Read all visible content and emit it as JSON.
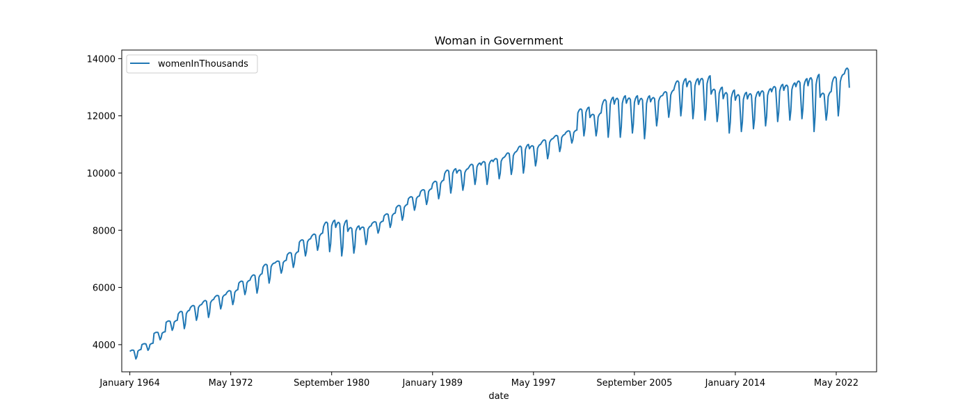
{
  "chart_data": {
    "type": "line",
    "title": "Woman in Government",
    "xlabel": "date",
    "ylabel": "",
    "ylim": [
      3050,
      14300
    ],
    "xlim": [
      "1963-05",
      "2025-09"
    ],
    "x_ticks": [
      "January 1964",
      "May 1972",
      "September 1980",
      "January 1989",
      "May 1997",
      "September 2005",
      "January 2014",
      "May 2022"
    ],
    "x_tick_dates": [
      "1964-01",
      "1972-05",
      "1980-09",
      "1989-01",
      "1997-05",
      "2005-09",
      "2014-01",
      "2022-05"
    ],
    "y_ticks": [
      4000,
      6000,
      8000,
      10000,
      12000,
      14000
    ],
    "grid": false,
    "legend": {
      "position": "top-left"
    },
    "series": [
      {
        "name": "womenInThousands",
        "color": "#1f77b4",
        "frequency": "monthly",
        "start": "1964-01",
        "end": "2023-06",
        "annual_peak": [
          [
            "1964",
            3830
          ],
          [
            "1965",
            4050
          ],
          [
            "1966",
            4450
          ],
          [
            "1967",
            4850
          ],
          [
            "1968",
            5200
          ],
          [
            "1969",
            5400
          ],
          [
            "1970",
            5580
          ],
          [
            "1971",
            5750
          ],
          [
            "1972",
            5920
          ],
          [
            "1973",
            6250
          ],
          [
            "1974",
            6480
          ],
          [
            "1975",
            6850
          ],
          [
            "1976",
            6950
          ],
          [
            "1977",
            7250
          ],
          [
            "1978",
            7700
          ],
          [
            "1979",
            7900
          ],
          [
            "1980",
            8350
          ],
          [
            "1981",
            8350
          ],
          [
            "1982",
            8150
          ],
          [
            "1983",
            8150
          ],
          [
            "1984",
            8320
          ],
          [
            "1985",
            8600
          ],
          [
            "1986",
            8900
          ],
          [
            "1987",
            9200
          ],
          [
            "1988",
            9450
          ],
          [
            "1989",
            9750
          ],
          [
            "1990",
            10150
          ],
          [
            "1991",
            10150
          ],
          [
            "1992",
            10350
          ],
          [
            "1993",
            10450
          ],
          [
            "1994",
            10550
          ],
          [
            "1995",
            10750
          ],
          [
            "1996",
            11000
          ],
          [
            "1997",
            11000
          ],
          [
            "1998",
            11200
          ],
          [
            "1999",
            11350
          ],
          [
            "2000",
            11500
          ],
          [
            "2001",
            12300
          ],
          [
            "2002",
            12100
          ],
          [
            "2003",
            12650
          ],
          [
            "2004",
            12700
          ],
          [
            "2005",
            12700
          ],
          [
            "2006",
            12700
          ],
          [
            "2007",
            12700
          ],
          [
            "2008",
            12900
          ],
          [
            "2009",
            13300
          ],
          [
            "2010",
            13300
          ],
          [
            "2011",
            13400
          ],
          [
            "2012",
            13000
          ],
          [
            "2013",
            12900
          ],
          [
            "2014",
            12820
          ],
          [
            "2015",
            12850
          ],
          [
            "2016",
            12950
          ],
          [
            "2017",
            13100
          ],
          [
            "2018",
            13150
          ],
          [
            "2019",
            13300
          ],
          [
            "2020",
            13450
          ],
          [
            "2021",
            12850
          ],
          [
            "2022",
            13450
          ],
          [
            "2023",
            13750
          ]
        ],
        "annual_summer_low": [
          [
            "1964",
            3500
          ],
          [
            "1965",
            3800
          ],
          [
            "1966",
            4170
          ],
          [
            "1967",
            4500
          ],
          [
            "1968",
            4560
          ],
          [
            "1969",
            4850
          ],
          [
            "1970",
            4950
          ],
          [
            "1971",
            5250
          ],
          [
            "1972",
            5400
          ],
          [
            "1973",
            5750
          ],
          [
            "1974",
            5800
          ],
          [
            "1975",
            6150
          ],
          [
            "1976",
            6500
          ],
          [
            "1977",
            6700
          ],
          [
            "1978",
            7100
          ],
          [
            "1979",
            7300
          ],
          [
            "1980",
            7250
          ],
          [
            "1981",
            7100
          ],
          [
            "1982",
            7200
          ],
          [
            "1983",
            7500
          ],
          [
            "1984",
            7900
          ],
          [
            "1985",
            8100
          ],
          [
            "1986",
            8350
          ],
          [
            "1987",
            8700
          ],
          [
            "1988",
            8900
          ],
          [
            "1989",
            9100
          ],
          [
            "1990",
            9300
          ],
          [
            "1991",
            9400
          ],
          [
            "1992",
            9600
          ],
          [
            "1993",
            9600
          ],
          [
            "1994",
            9800
          ],
          [
            "1995",
            9950
          ],
          [
            "1996",
            10000
          ],
          [
            "1997",
            10250
          ],
          [
            "1998",
            10500
          ],
          [
            "1999",
            10750
          ],
          [
            "2000",
            11050
          ],
          [
            "2001",
            11300
          ],
          [
            "2002",
            11300
          ],
          [
            "2003",
            11250
          ],
          [
            "2004",
            11250
          ],
          [
            "2005",
            11400
          ],
          [
            "2006",
            11200
          ],
          [
            "2007",
            11650
          ],
          [
            "2008",
            11950
          ],
          [
            "2009",
            12000
          ],
          [
            "2010",
            11900
          ],
          [
            "2011",
            11850
          ],
          [
            "2012",
            11800
          ],
          [
            "2013",
            11400
          ],
          [
            "2014",
            11450
          ],
          [
            "2015",
            11550
          ],
          [
            "2016",
            11650
          ],
          [
            "2017",
            11800
          ],
          [
            "2018",
            11850
          ],
          [
            "2019",
            11900
          ],
          [
            "2020",
            11450
          ],
          [
            "2021",
            11850
          ],
          [
            "2022",
            12000
          ],
          [
            "2023",
            12350
          ]
        ]
      }
    ]
  }
}
